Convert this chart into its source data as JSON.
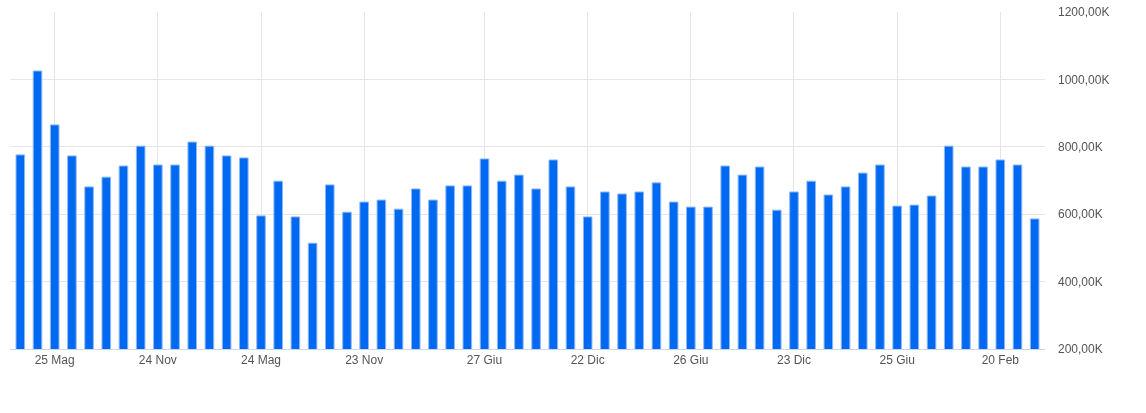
{
  "chart_data": {
    "type": "bar",
    "categories": [
      null,
      null,
      "25 Mag",
      null,
      null,
      null,
      null,
      null,
      "24 Nov",
      null,
      null,
      null,
      null,
      null,
      "24 Mag",
      null,
      null,
      null,
      null,
      null,
      "23 Nov",
      null,
      null,
      null,
      null,
      null,
      null,
      "27 Giu",
      null,
      null,
      null,
      null,
      null,
      "22 Dic",
      null,
      null,
      null,
      null,
      null,
      "26 Giu",
      null,
      null,
      null,
      null,
      null,
      "23 Dic",
      null,
      null,
      null,
      null,
      null,
      "25 Giu",
      null,
      null,
      null,
      null,
      null,
      "20 Feb",
      null,
      null
    ],
    "values": [
      776,
      1025,
      865,
      773,
      681,
      710,
      743,
      802,
      746,
      746,
      814,
      802,
      773,
      767,
      595,
      698,
      592,
      514,
      687,
      606,
      636,
      642,
      615,
      675,
      642,
      684,
      684,
      764,
      698,
      716,
      675,
      761,
      681,
      592,
      666,
      660,
      666,
      693,
      636,
      621,
      621,
      743,
      716,
      740,
      612,
      666,
      698,
      657,
      681,
      722,
      746,
      624,
      627,
      654,
      802,
      740,
      740,
      761,
      746,
      586
    ],
    "color": "#0069f2",
    "ylim": [
      200,
      1200
    ],
    "yticks": [
      {
        "value": 200,
        "label": "200,00K"
      },
      {
        "value": 400,
        "label": "400,00K"
      },
      {
        "value": 600,
        "label": "600,00K"
      },
      {
        "value": 800,
        "label": "800,00K"
      },
      {
        "value": 1000,
        "label": "1000,00K"
      },
      {
        "value": 1200,
        "label": "1200,00K"
      }
    ],
    "grid": true
  }
}
